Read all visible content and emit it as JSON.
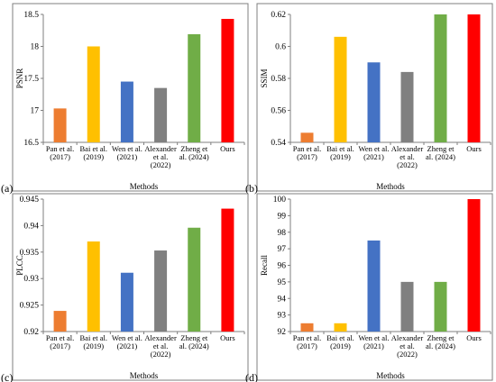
{
  "chart_data": [
    {
      "type": "bar",
      "tag": "(a)",
      "categories": [
        [
          "Pan et al.",
          "(2017)"
        ],
        [
          "Bai et al.",
          "(2019)"
        ],
        [
          "Wen et al.",
          "(2021)"
        ],
        [
          "Alexander",
          "et al.",
          "(2022)"
        ],
        [
          "Zheng et",
          "al. (2024)"
        ],
        [
          "Ours"
        ]
      ],
      "values": [
        17.03,
        18.0,
        17.45,
        17.35,
        18.19,
        18.43
      ],
      "colors": [
        "#ED7D31",
        "#FFC000",
        "#4472C4",
        "#808080",
        "#70AD47",
        "#FF0000"
      ],
      "xlabel": "Methods",
      "ylabel": "PSNR",
      "ylim": [
        16.5,
        18.5
      ],
      "yticks": [
        16.5,
        17,
        17.5,
        18,
        18.5
      ],
      "ytick_labels": [
        "16.5",
        "17",
        "17.5",
        "18",
        "18.5"
      ],
      "grid": false
    },
    {
      "type": "bar",
      "tag": "(b)",
      "categories": [
        [
          "Pan et al.",
          "(2017)"
        ],
        [
          "Bai et al.",
          "(2019)"
        ],
        [
          "Wen et al.",
          "(2021)"
        ],
        [
          "Alexander",
          "et al.",
          "(2022)"
        ],
        [
          "Zheng et",
          "al. (2024)"
        ],
        [
          "Ours"
        ]
      ],
      "values": [
        0.546,
        0.606,
        0.59,
        0.584,
        0.62,
        0.62
      ],
      "colors": [
        "#ED7D31",
        "#FFC000",
        "#4472C4",
        "#808080",
        "#70AD47",
        "#FF0000"
      ],
      "xlabel": "Methods",
      "ylabel": "SSIM",
      "ylim": [
        0.54,
        0.62
      ],
      "yticks": [
        0.54,
        0.56,
        0.58,
        0.6,
        0.62
      ],
      "ytick_labels": [
        "0.54",
        "0.56",
        "0.58",
        "0.6",
        "0.62"
      ],
      "grid": false
    },
    {
      "type": "bar",
      "tag": "(c)",
      "categories": [
        [
          "Pan et al.",
          "(2017)"
        ],
        [
          "Bai et al.",
          "(2019)"
        ],
        [
          "Wen et al.",
          "(2021)"
        ],
        [
          "Alexander",
          "et al.",
          "(2022)"
        ],
        [
          "Zheng et",
          "al. (2024)"
        ],
        [
          "Ours"
        ]
      ],
      "values": [
        0.9239,
        0.937,
        0.9311,
        0.9353,
        0.9396,
        0.9432
      ],
      "colors": [
        "#ED7D31",
        "#FFC000",
        "#4472C4",
        "#808080",
        "#70AD47",
        "#FF0000"
      ],
      "xlabel": "Methods",
      "ylabel": "PLCC",
      "ylim": [
        0.92,
        0.945
      ],
      "yticks": [
        0.92,
        0.925,
        0.93,
        0.935,
        0.94,
        0.945
      ],
      "ytick_labels": [
        "0.92",
        "0.925",
        "0.93",
        "0.935",
        "0.94",
        "0.945"
      ],
      "grid": false
    },
    {
      "type": "bar",
      "tag": "(d)",
      "categories": [
        [
          "Pan et al.",
          "(2017)"
        ],
        [
          "Bai et al.",
          "(2019)"
        ],
        [
          "Wen et al.",
          "(2021)"
        ],
        [
          "Alexander",
          "et al.",
          "(2022)"
        ],
        [
          "Zheng et",
          "al. (2024)"
        ],
        [
          "Ours"
        ]
      ],
      "values": [
        92.5,
        92.5,
        97.5,
        95,
        95,
        100
      ],
      "colors": [
        "#ED7D31",
        "#FFC000",
        "#4472C4",
        "#808080",
        "#70AD47",
        "#FF0000"
      ],
      "xlabel": "Methods",
      "ylabel": "Recall",
      "ylim": [
        92,
        100
      ],
      "yticks": [
        92,
        93,
        94,
        95,
        96,
        97,
        98,
        99,
        100
      ],
      "ytick_labels": [
        "92",
        "93",
        "94",
        "95",
        "96",
        "97",
        "98",
        "99",
        "100"
      ],
      "grid": false
    }
  ]
}
